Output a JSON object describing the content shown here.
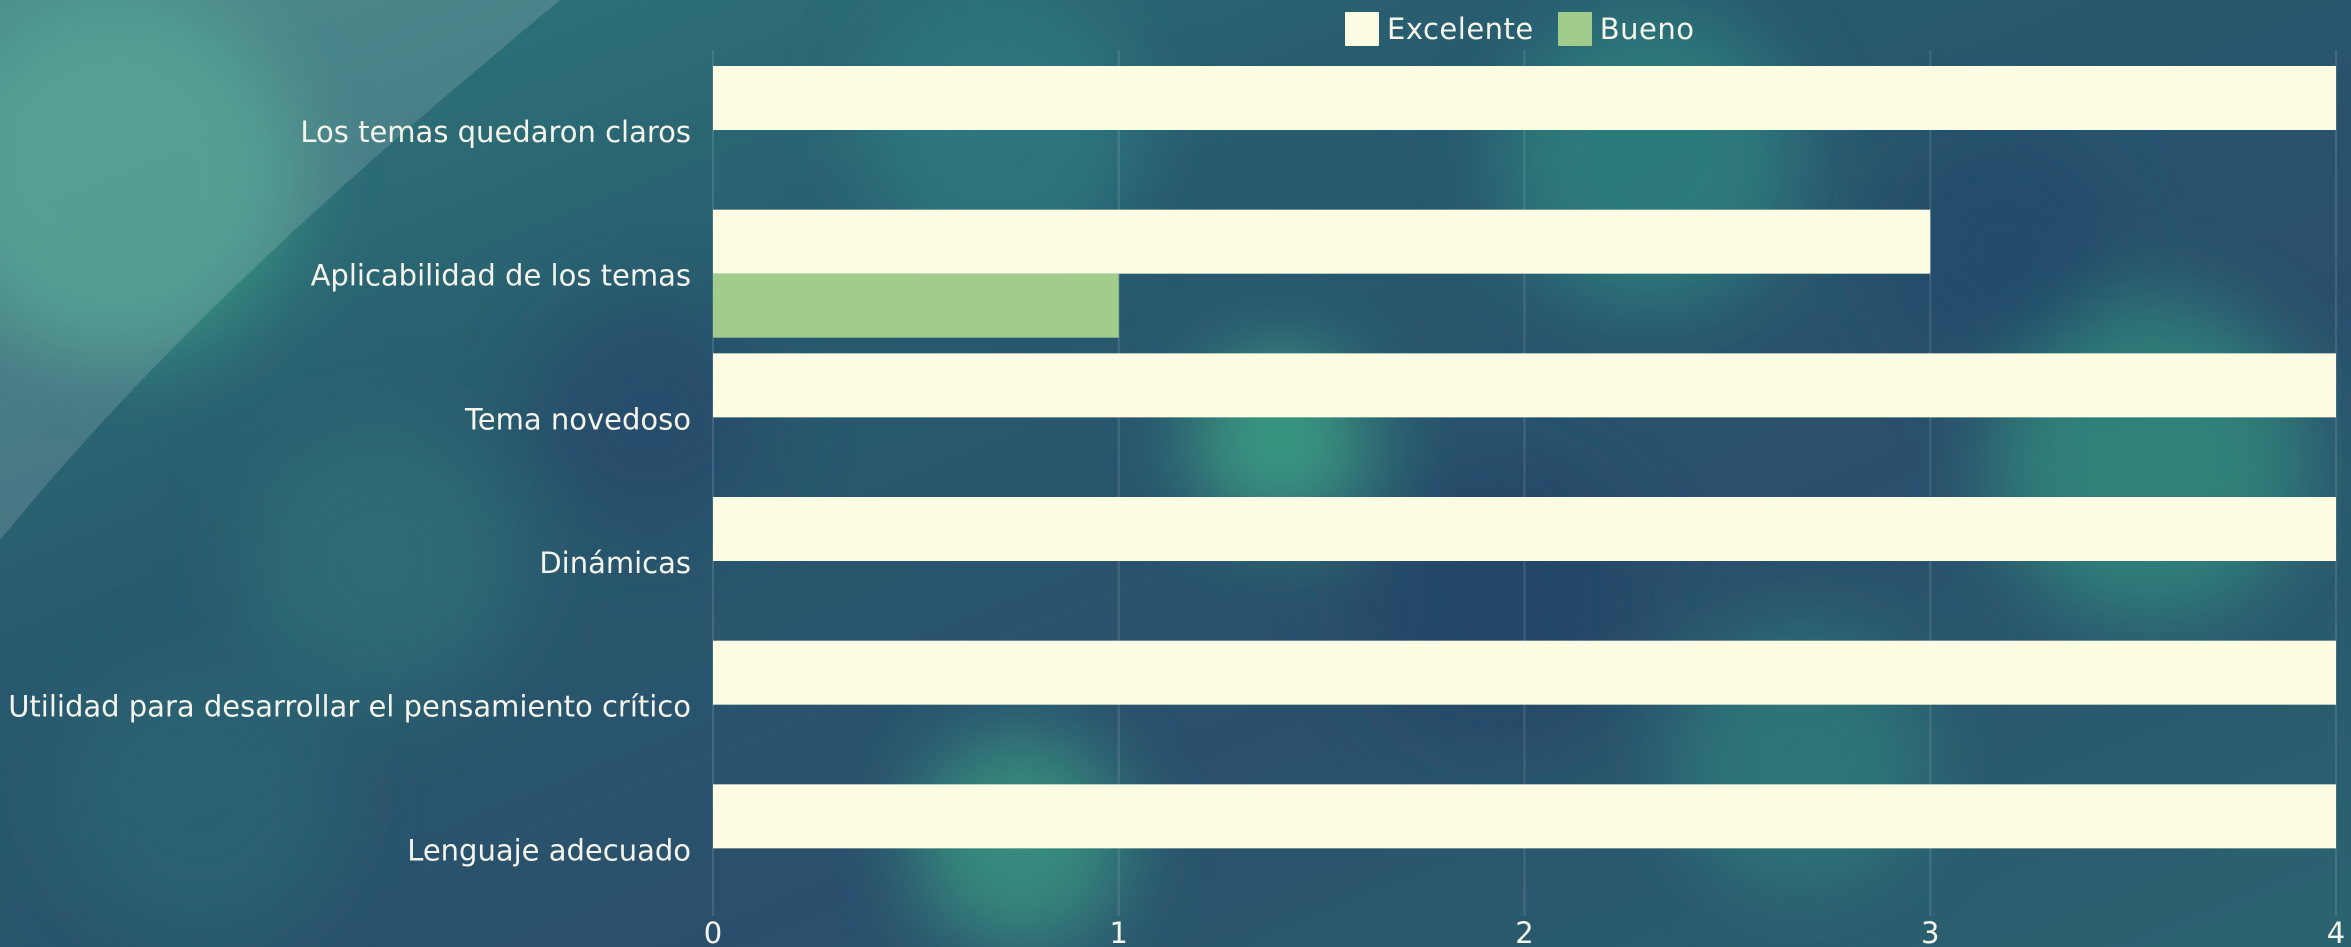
{
  "chart_data": {
    "type": "bar",
    "orientation": "horizontal",
    "categories": [
      "Los temas quedaron claros",
      "Aplicabilidad de los temas",
      "Tema novedoso",
      "Dinámicas",
      "Utilidad para desarrollar el pensamiento crítico",
      "Lenguaje adecuado"
    ],
    "series": [
      {
        "name": "Excelente",
        "values": [
          4,
          3,
          4,
          4,
          4,
          4
        ],
        "color": "#fdfde4"
      },
      {
        "name": "Bueno",
        "values": [
          0,
          1,
          0,
          0,
          0,
          0
        ],
        "color": "#a2cc8b"
      }
    ],
    "xlim": [
      0,
      4
    ],
    "xticks": [
      "0",
      "1",
      "2",
      "3",
      "4"
    ],
    "grid": true,
    "legend_position": "top-right"
  },
  "colors": {
    "text": "#f4f4ea",
    "grid": "rgba(255,255,255,0.12)"
  }
}
